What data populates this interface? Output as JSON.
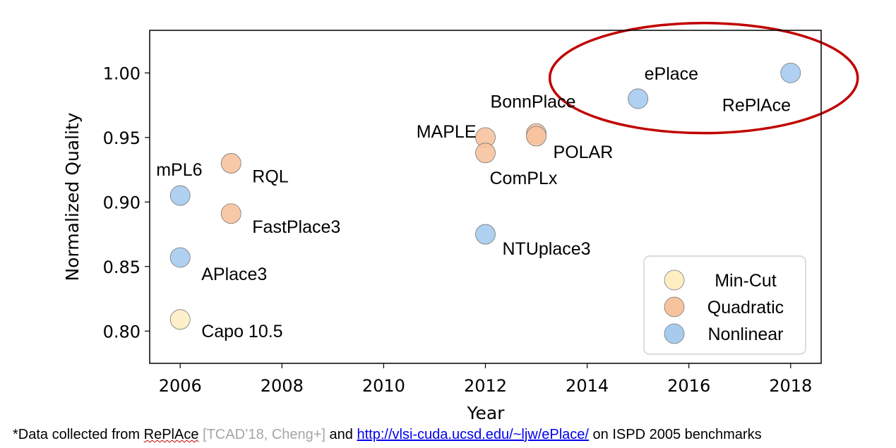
{
  "chart_data": {
    "type": "scatter",
    "title": "",
    "xlabel": "Year",
    "ylabel": "Normalized Quality",
    "xlim": [
      2005.4,
      2018.6
    ],
    "ylim": [
      0.775,
      1.033
    ],
    "x_ticks": [
      "2006",
      "2008",
      "2010",
      "2012",
      "2014",
      "2016",
      "2018"
    ],
    "y_ticks": [
      "0.80",
      "0.85",
      "0.90",
      "0.95",
      "1.00"
    ],
    "grid": false,
    "legend": {
      "position": "bottom-right",
      "entries": [
        "Min-Cut",
        "Quadratic",
        "Nonlinear"
      ]
    },
    "colors": {
      "Min-Cut": "#fdeec4",
      "Quadratic": "#f7c39e",
      "Nonlinear": "#a6cbef"
    },
    "series": [
      {
        "name": "Min-Cut",
        "points": [
          {
            "x": 2006,
            "y": 0.809,
            "label": "Capo 10.5"
          }
        ]
      },
      {
        "name": "Quadratic",
        "points": [
          {
            "x": 2007,
            "y": 0.93,
            "label": "RQL"
          },
          {
            "x": 2007,
            "y": 0.891,
            "label": "FastPlace3"
          },
          {
            "x": 2012,
            "y": 0.95,
            "label": "MAPLE"
          },
          {
            "x": 2012,
            "y": 0.938,
            "label": "ComPLx"
          },
          {
            "x": 2013,
            "y": 0.953,
            "label": "BonnPlace"
          },
          {
            "x": 2013,
            "y": 0.951,
            "label": "POLAR"
          }
        ]
      },
      {
        "name": "Nonlinear",
        "points": [
          {
            "x": 2006,
            "y": 0.905,
            "label": "mPL6"
          },
          {
            "x": 2006,
            "y": 0.857,
            "label": "APlace3"
          },
          {
            "x": 2012,
            "y": 0.875,
            "label": "NTUplace3"
          },
          {
            "x": 2015,
            "y": 0.98,
            "label": "ePlace"
          },
          {
            "x": 2018,
            "y": 1.0,
            "label": "RePlAce"
          }
        ]
      }
    ],
    "highlight_color": "#c00000"
  },
  "footnote": {
    "prefix": "*Data collected from ",
    "replace": "RePlAce",
    "citation": " [TCAD’18, Cheng+]",
    "middle": " and ",
    "link": "http://vlsi-cuda.ucsd.edu/~ljw/ePlace/",
    "suffix": " on ISPD 2005 benchmarks"
  }
}
